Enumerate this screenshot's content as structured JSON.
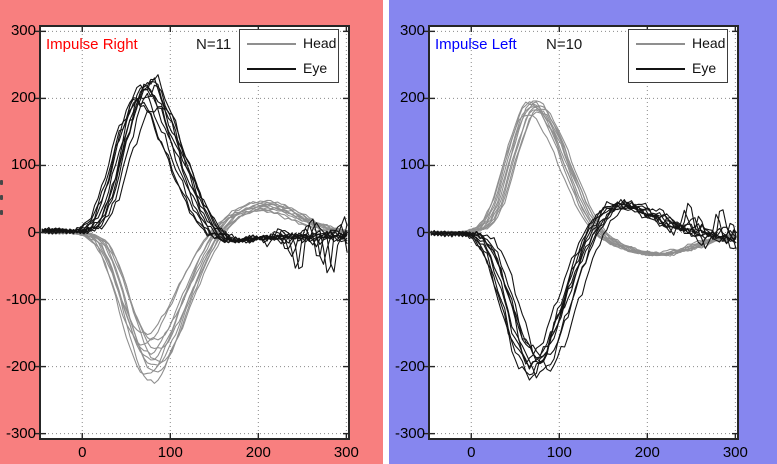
{
  "chart_data": [
    {
      "type": "line",
      "title": "Impulse Right",
      "title_color": "#ff0000",
      "n_label": "N=11",
      "panel_bg": "#f87f7f",
      "plot_bg": "#ffffff",
      "xlim": [
        -48,
        303
      ],
      "ylim": [
        -308,
        308
      ],
      "xticks": [
        0,
        100,
        200,
        300
      ],
      "yticks": [
        300,
        200,
        100,
        0,
        -100,
        -200,
        -300
      ],
      "grid": "dotted",
      "legend_position": "top-right",
      "legend": [
        {
          "label": "Head",
          "color": "#8f8f8f"
        },
        {
          "label": "Eye",
          "color": "#141414"
        }
      ],
      "series": [
        {
          "name": "Head",
          "color": "#8f8f8f",
          "base": [
            [
              -46,
              0
            ],
            [
              -30,
              -1
            ],
            [
              -15,
              1
            ],
            [
              0,
              -2
            ],
            [
              10,
              -6
            ],
            [
              20,
              -16
            ],
            [
              30,
              -40
            ],
            [
              40,
              -78
            ],
            [
              50,
              -122
            ],
            [
              60,
              -162
            ],
            [
              70,
              -185
            ],
            [
              80,
              -191
            ],
            [
              90,
              -176
            ],
            [
              100,
              -150
            ],
            [
              110,
              -118
            ],
            [
              120,
              -85
            ],
            [
              130,
              -55
            ],
            [
              140,
              -28
            ],
            [
              150,
              -5
            ],
            [
              160,
              12
            ],
            [
              170,
              24
            ],
            [
              180,
              32
            ],
            [
              190,
              37
            ],
            [
              200,
              40
            ],
            [
              210,
              40
            ],
            [
              220,
              38
            ],
            [
              230,
              33
            ],
            [
              240,
              27
            ],
            [
              250,
              20
            ],
            [
              260,
              14
            ],
            [
              270,
              9
            ],
            [
              280,
              5
            ],
            [
              290,
              3
            ],
            [
              300,
              1
            ]
          ],
          "traces": [
            {
              "a": 1.0,
              "sh": 0,
              "sd": 1,
              "no": 2,
              "lt": 3,
              "fl": 1
            },
            {
              "a": 0.85,
              "sh": 5,
              "sd": 2,
              "no": 2,
              "lt": 3,
              "fl": 1
            },
            {
              "a": 1.12,
              "sh": -4,
              "sd": 3,
              "no": 2,
              "lt": 4,
              "fl": 1
            },
            {
              "a": 0.92,
              "sh": 8,
              "sd": 4,
              "no": 2,
              "lt": 3,
              "fl": 1
            },
            {
              "a": 1.18,
              "sh": 2,
              "sd": 5,
              "no": 2,
              "lt": 3,
              "fl": 1
            },
            {
              "a": 0.8,
              "sh": -6,
              "sd": 6,
              "no": 2,
              "lt": 4,
              "fl": 1
            },
            {
              "a": 1.05,
              "sh": 4,
              "sd": 7,
              "no": 2,
              "lt": 3,
              "fl": 1
            },
            {
              "a": 0.95,
              "sh": -2,
              "sd": 8,
              "no": 2,
              "lt": 3,
              "fl": 1
            },
            {
              "a": 1.1,
              "sh": 6,
              "sd": 9,
              "no": 2,
              "lt": 4,
              "fl": 1
            },
            {
              "a": 0.88,
              "sh": -8,
              "sd": 10,
              "no": 2,
              "lt": 3,
              "fl": 1
            },
            {
              "a": 1.02,
              "sh": 10,
              "sd": 11,
              "no": 2,
              "lt": 3,
              "fl": 1
            }
          ]
        },
        {
          "name": "Eye",
          "color": "#141414",
          "base": [
            [
              -46,
              2
            ],
            [
              -35,
              4
            ],
            [
              -25,
              3
            ],
            [
              -15,
              1
            ],
            [
              -5,
              2
            ],
            [
              0,
              3
            ],
            [
              10,
              9
            ],
            [
              20,
              26
            ],
            [
              30,
              62
            ],
            [
              40,
              112
            ],
            [
              50,
              162
            ],
            [
              60,
              197
            ],
            [
              70,
              216
            ],
            [
              78,
              213
            ],
            [
              90,
              178
            ],
            [
              100,
              142
            ],
            [
              110,
              106
            ],
            [
              120,
              71
            ],
            [
              130,
              41
            ],
            [
              140,
              16
            ],
            [
              150,
              0
            ],
            [
              160,
              -9
            ],
            [
              170,
              -13
            ],
            [
              180,
              -12
            ],
            [
              190,
              -10
            ],
            [
              200,
              -8
            ],
            [
              210,
              -7
            ],
            [
              220,
              -8
            ],
            [
              230,
              -6
            ],
            [
              240,
              -8
            ],
            [
              250,
              -6
            ],
            [
              260,
              -7
            ],
            [
              270,
              -5
            ],
            [
              280,
              -6
            ],
            [
              290,
              -5
            ],
            [
              300,
              -4
            ]
          ],
          "traces": [
            {
              "a": 1.0,
              "sh": 0,
              "sd": 1,
              "no": 5,
              "lt": 8,
              "fl": 1
            },
            {
              "a": 1.05,
              "sh": 4,
              "sd": 2,
              "no": 5,
              "lt": 52,
              "fl": 1
            },
            {
              "a": 0.95,
              "sh": -5,
              "sd": 3,
              "no": 6,
              "lt": 10,
              "fl": 1
            },
            {
              "a": 1.07,
              "sh": 8,
              "sd": 4,
              "no": 5,
              "lt": 6,
              "fl": 1
            },
            {
              "a": 0.9,
              "sh": -8,
              "sd": 5,
              "no": 5,
              "lt": 58,
              "fl": 1
            },
            {
              "a": 0.98,
              "sh": 3,
              "sd": 6,
              "no": 6,
              "lt": 12,
              "fl": 1
            },
            {
              "a": 1.02,
              "sh": -3,
              "sd": 7,
              "no": 5,
              "lt": 8,
              "fl": 1
            },
            {
              "a": 0.87,
              "sh": 12,
              "sd": 8,
              "no": 6,
              "lt": 42,
              "fl": 1
            },
            {
              "a": 1.04,
              "sh": 6,
              "sd": 9,
              "no": 5,
              "lt": 10,
              "fl": 1
            },
            {
              "a": 0.93,
              "sh": -10,
              "sd": 10,
              "no": 5,
              "lt": 6,
              "fl": 1
            },
            {
              "a": 1.0,
              "sh": 10,
              "sd": 11,
              "no": 6,
              "lt": 30,
              "fl": 1
            }
          ]
        }
      ]
    },
    {
      "type": "line",
      "title": "Impulse Left",
      "title_color": "#0000ff",
      "n_label": "N=10",
      "panel_bg": "#8686ef",
      "plot_bg": "#ffffff",
      "xlim": [
        -48,
        303
      ],
      "ylim": [
        -308,
        308
      ],
      "xticks": [
        0,
        100,
        200,
        300
      ],
      "yticks": [
        300,
        200,
        100,
        0,
        -100,
        -200,
        -300
      ],
      "grid": "dotted",
      "legend_position": "top-right",
      "legend": [
        {
          "label": "Head",
          "color": "#8f8f8f"
        },
        {
          "label": "Eye",
          "color": "#141414"
        }
      ],
      "series": [
        {
          "name": "Head",
          "color": "#8f8f8f",
          "base": [
            [
              -46,
              0
            ],
            [
              -30,
              1
            ],
            [
              -15,
              0
            ],
            [
              0,
              2
            ],
            [
              10,
              6
            ],
            [
              20,
              18
            ],
            [
              30,
              46
            ],
            [
              40,
              92
            ],
            [
              50,
              140
            ],
            [
              60,
              176
            ],
            [
              68,
              191
            ],
            [
              78,
              186
            ],
            [
              90,
              161
            ],
            [
              100,
              130
            ],
            [
              110,
              95
            ],
            [
              120,
              62
            ],
            [
              130,
              32
            ],
            [
              140,
              10
            ],
            [
              150,
              -6
            ],
            [
              165,
              -18
            ],
            [
              180,
              -26
            ],
            [
              195,
              -31
            ],
            [
              210,
              -33
            ],
            [
              225,
              -31
            ],
            [
              240,
              -26
            ],
            [
              255,
              -19
            ],
            [
              270,
              -13
            ],
            [
              285,
              -8
            ],
            [
              300,
              -5
            ]
          ],
          "traces": [
            {
              "a": 1.0,
              "sh": 0,
              "sd": 1,
              "no": 2,
              "lt": 4,
              "fl": 1
            },
            {
              "a": 0.97,
              "sh": 3,
              "sd": 2,
              "no": 2,
              "lt": 4,
              "fl": 1
            },
            {
              "a": 1.03,
              "sh": -3,
              "sd": 3,
              "no": 2,
              "lt": 4,
              "fl": 1
            },
            {
              "a": 0.95,
              "sh": 6,
              "sd": 4,
              "no": 2,
              "lt": 4,
              "fl": 1
            },
            {
              "a": 1.02,
              "sh": -5,
              "sd": 5,
              "no": 2,
              "lt": 4,
              "fl": 1
            },
            {
              "a": 0.98,
              "sh": 8,
              "sd": 6,
              "no": 2,
              "lt": 4,
              "fl": 1
            },
            {
              "a": 1.04,
              "sh": 2,
              "sd": 7,
              "no": 2,
              "lt": 4,
              "fl": 1
            },
            {
              "a": 0.93,
              "sh": -7,
              "sd": 8,
              "no": 2,
              "lt": 4,
              "fl": 1
            },
            {
              "a": 1.0,
              "sh": 5,
              "sd": 9,
              "no": 2,
              "lt": 4,
              "fl": 1
            },
            {
              "a": 0.99,
              "sh": -2,
              "sd": 10,
              "no": 2,
              "lt": 5,
              "fl": 1
            }
          ]
        },
        {
          "name": "Eye",
          "color": "#141414",
          "base": [
            [
              -46,
              -1
            ],
            [
              -30,
              -2
            ],
            [
              -15,
              -1
            ],
            [
              0,
              -3
            ],
            [
              10,
              -10
            ],
            [
              20,
              -28
            ],
            [
              30,
              -62
            ],
            [
              40,
              -106
            ],
            [
              50,
              -152
            ],
            [
              60,
              -186
            ],
            [
              70,
              -199
            ],
            [
              80,
              -193
            ],
            [
              90,
              -166
            ],
            [
              100,
              -129
            ],
            [
              110,
              -89
            ],
            [
              120,
              -51
            ],
            [
              130,
              -17
            ],
            [
              140,
              8
            ],
            [
              150,
              27
            ],
            [
              160,
              38
            ],
            [
              170,
              42
            ],
            [
              180,
              40
            ],
            [
              190,
              35
            ],
            [
              200,
              28
            ],
            [
              210,
              22
            ],
            [
              220,
              15
            ],
            [
              230,
              10
            ],
            [
              240,
              6
            ],
            [
              250,
              2
            ],
            [
              260,
              -1
            ],
            [
              270,
              -4
            ],
            [
              280,
              -6
            ],
            [
              290,
              -8
            ],
            [
              300,
              -9
            ]
          ],
          "traces": [
            {
              "a": 1.0,
              "sh": 0,
              "sd": 1,
              "no": 6,
              "lt": 10,
              "fl": -1
            },
            {
              "a": 0.92,
              "sh": 4,
              "sd": 2,
              "no": 6,
              "lt": 45,
              "fl": -1
            },
            {
              "a": 1.05,
              "sh": -4,
              "sd": 3,
              "no": 6,
              "lt": 12,
              "fl": -1
            },
            {
              "a": 0.97,
              "sh": 8,
              "sd": 4,
              "no": 5,
              "lt": 8,
              "fl": -1
            },
            {
              "a": 1.08,
              "sh": -6,
              "sd": 5,
              "no": 6,
              "lt": 35,
              "fl": -1
            },
            {
              "a": 0.9,
              "sh": 3,
              "sd": 6,
              "no": 6,
              "lt": 10,
              "fl": -1
            },
            {
              "a": 1.02,
              "sh": 15,
              "sd": 7,
              "no": 6,
              "lt": 14,
              "fl": -1
            },
            {
              "a": 0.95,
              "sh": -8,
              "sd": 8,
              "no": 5,
              "lt": 8,
              "fl": -1
            },
            {
              "a": 1.06,
              "sh": 6,
              "sd": 9,
              "no": 6,
              "lt": 22,
              "fl": -1
            },
            {
              "a": 0.99,
              "sh": -2,
              "sd": 10,
              "no": 6,
              "lt": 12,
              "fl": -1
            }
          ]
        }
      ]
    }
  ]
}
